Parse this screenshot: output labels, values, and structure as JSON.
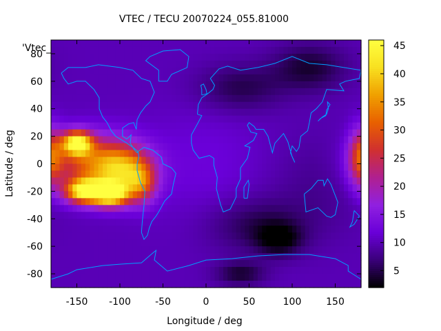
{
  "chart_data": {
    "type": "heatmap",
    "title": "VTEC / TECU 20070224_055.81000",
    "xlabel": "Longitude / deg",
    "ylabel": "Latitude / deg",
    "series_key": "'Vtec_",
    "xlim": [
      -180,
      180
    ],
    "ylim": [
      -90,
      90
    ],
    "x_ticks": [
      "-150",
      "-100",
      "-50",
      "0",
      "50",
      "100",
      "150"
    ],
    "x_tick_values": [
      -150,
      -100,
      -50,
      0,
      50,
      100,
      150
    ],
    "y_ticks": [
      "-80",
      "-60",
      "-40",
      "-20",
      "0",
      "20",
      "40",
      "60",
      "80"
    ],
    "y_tick_values": [
      -80,
      -60,
      -40,
      -20,
      0,
      20,
      40,
      60,
      80
    ],
    "colorbar": {
      "min": 2,
      "max": 46,
      "ticks": [
        "5",
        "10",
        "15",
        "20",
        "25",
        "30",
        "35",
        "40",
        "45"
      ],
      "tick_values": [
        5,
        10,
        15,
        20,
        25,
        30,
        35,
        40,
        45
      ],
      "colormap": [
        "#000000",
        "#3a007a",
        "#6a00d8",
        "#9020e0",
        "#b02090",
        "#d03030",
        "#e86000",
        "#f0a000",
        "#f8e020",
        "#ffff40"
      ]
    },
    "background_vtec": 10,
    "grid": false,
    "coastline_color": "#00a0ff",
    "features": [
      {
        "lon": -150,
        "lat": 15,
        "vtec": 42,
        "sigma_lon": 12,
        "sigma_lat": 6
      },
      {
        "lon": -140,
        "lat": -20,
        "vtec": 44,
        "sigma_lon": 16,
        "sigma_lat": 6
      },
      {
        "lon": -110,
        "lat": -22,
        "vtec": 43,
        "sigma_lon": 14,
        "sigma_lat": 6
      },
      {
        "lon": -130,
        "lat": 0,
        "vtec": 30,
        "sigma_lon": 35,
        "sigma_lat": 14
      },
      {
        "lon": -95,
        "lat": -5,
        "vtec": 28,
        "sigma_lon": 22,
        "sigma_lat": 12
      },
      {
        "lon": -75,
        "lat": -15,
        "vtec": 24,
        "sigma_lon": 12,
        "sigma_lat": 10
      },
      {
        "lon": 180,
        "lat": 5,
        "vtec": 27,
        "sigma_lon": 10,
        "sigma_lat": 14
      },
      {
        "lon": 60,
        "lat": -45,
        "vtec": 5,
        "sigma_lon": 40,
        "sigma_lat": 14
      },
      {
        "lon": 85,
        "lat": -55,
        "vtec": 3,
        "sigma_lon": 18,
        "sigma_lat": 8
      },
      {
        "lon": 40,
        "lat": -80,
        "vtec": 4,
        "sigma_lon": 20,
        "sigma_lat": 6
      },
      {
        "lon": 40,
        "lat": 55,
        "vtec": 5,
        "sigma_lon": 35,
        "sigma_lat": 12
      },
      {
        "lon": 120,
        "lat": 70,
        "vtec": 4,
        "sigma_lon": 30,
        "sigma_lat": 12
      },
      {
        "lon": 130,
        "lat": -15,
        "vtec": 8,
        "sigma_lon": 40,
        "sigma_lat": 25
      },
      {
        "lon": 0,
        "lat": 0,
        "vtec": 12,
        "sigma_lon": 50,
        "sigma_lat": 30
      }
    ],
    "coastlines": [
      {
        "name": "north-america",
        "points": [
          [
            -168,
            66
          ],
          [
            -160,
            70
          ],
          [
            -140,
            70
          ],
          [
            -125,
            72
          ],
          [
            -100,
            70
          ],
          [
            -85,
            68
          ],
          [
            -75,
            62
          ],
          [
            -65,
            60
          ],
          [
            -60,
            52
          ],
          [
            -65,
            45
          ],
          [
            -70,
            42
          ],
          [
            -76,
            37
          ],
          [
            -80,
            32
          ],
          [
            -81,
            25
          ],
          [
            -84,
            30
          ],
          [
            -90,
            29
          ],
          [
            -97,
            26
          ],
          [
            -97,
            20
          ],
          [
            -92,
            18
          ],
          [
            -87,
            21
          ],
          [
            -88,
            15
          ],
          [
            -83,
            10
          ],
          [
            -80,
            8
          ],
          [
            -79,
            9
          ],
          [
            -85,
            12
          ],
          [
            -92,
            15
          ],
          [
            -105,
            20
          ],
          [
            -110,
            24
          ],
          [
            -115,
            30
          ],
          [
            -120,
            34
          ],
          [
            -124,
            40
          ],
          [
            -124,
            48
          ],
          [
            -130,
            54
          ],
          [
            -140,
            60
          ],
          [
            -150,
            60
          ],
          [
            -160,
            58
          ],
          [
            -165,
            62
          ],
          [
            -168,
            66
          ]
        ]
      },
      {
        "name": "greenland",
        "points": [
          [
            -55,
            60
          ],
          [
            -45,
            60
          ],
          [
            -40,
            65
          ],
          [
            -22,
            70
          ],
          [
            -20,
            78
          ],
          [
            -30,
            83
          ],
          [
            -50,
            82
          ],
          [
            -65,
            78
          ],
          [
            -70,
            75
          ],
          [
            -55,
            68
          ],
          [
            -55,
            60
          ]
        ]
      },
      {
        "name": "south-america",
        "points": [
          [
            -79,
            9
          ],
          [
            -72,
            12
          ],
          [
            -62,
            10
          ],
          [
            -52,
            5
          ],
          [
            -50,
            0
          ],
          [
            -40,
            -3
          ],
          [
            -35,
            -7
          ],
          [
            -38,
            -15
          ],
          [
            -40,
            -22
          ],
          [
            -48,
            -27
          ],
          [
            -55,
            -35
          ],
          [
            -58,
            -38
          ],
          [
            -63,
            -42
          ],
          [
            -66,
            -47
          ],
          [
            -68,
            -52
          ],
          [
            -72,
            -55
          ],
          [
            -75,
            -50
          ],
          [
            -74,
            -42
          ],
          [
            -72,
            -30
          ],
          [
            -71,
            -20
          ],
          [
            -76,
            -14
          ],
          [
            -80,
            -5
          ],
          [
            -80,
            0
          ],
          [
            -78,
            5
          ],
          [
            -79,
            9
          ]
        ]
      },
      {
        "name": "eurasia-africa",
        "points": [
          [
            -10,
            36
          ],
          [
            -9,
            43
          ],
          [
            -5,
            48
          ],
          [
            2,
            51
          ],
          [
            8,
            54
          ],
          [
            10,
            57
          ],
          [
            5,
            62
          ],
          [
            15,
            69
          ],
          [
            25,
            71
          ],
          [
            40,
            68
          ],
          [
            60,
            70
          ],
          [
            80,
            73
          ],
          [
            100,
            78
          ],
          [
            120,
            73
          ],
          [
            140,
            72
          ],
          [
            160,
            70
          ],
          [
            180,
            68
          ],
          [
            178,
            62
          ],
          [
            162,
            60
          ],
          [
            155,
            58
          ],
          [
            160,
            53
          ],
          [
            140,
            54
          ],
          [
            135,
            45
          ],
          [
            128,
            40
          ],
          [
            122,
            37
          ],
          [
            120,
            30
          ],
          [
            118,
            24
          ],
          [
            110,
            20
          ],
          [
            108,
            12
          ],
          [
            105,
            9
          ],
          [
            100,
            13
          ],
          [
            98,
            8
          ],
          [
            103,
            1
          ],
          [
            100,
            5
          ],
          [
            95,
            16
          ],
          [
            90,
            22
          ],
          [
            80,
            15
          ],
          [
            77,
            8
          ],
          [
            72,
            20
          ],
          [
            67,
            25
          ],
          [
            58,
            25
          ],
          [
            56,
            27
          ],
          [
            50,
            30
          ],
          [
            48,
            28
          ],
          [
            52,
            23
          ],
          [
            59,
            22
          ],
          [
            55,
            17
          ],
          [
            45,
            13
          ],
          [
            51,
            12
          ],
          [
            48,
            4
          ],
          [
            40,
            -3
          ],
          [
            40,
            -11
          ],
          [
            35,
            -18
          ],
          [
            35,
            -24
          ],
          [
            32,
            -28
          ],
          [
            28,
            -33
          ],
          [
            20,
            -35
          ],
          [
            17,
            -30
          ],
          [
            12,
            -18
          ],
          [
            13,
            -10
          ],
          [
            9,
            -1
          ],
          [
            9,
            4
          ],
          [
            4,
            6
          ],
          [
            -8,
            4
          ],
          [
            -15,
            10
          ],
          [
            -17,
            15
          ],
          [
            -17,
            21
          ],
          [
            -10,
            29
          ],
          [
            -5,
            35
          ],
          [
            -10,
            36
          ]
        ]
      },
      {
        "name": "madagascar",
        "points": [
          [
            44,
            -25
          ],
          [
            48,
            -25
          ],
          [
            50,
            -15
          ],
          [
            49,
            -12
          ],
          [
            44,
            -17
          ],
          [
            44,
            -25
          ]
        ]
      },
      {
        "name": "australia",
        "points": [
          [
            114,
            -22
          ],
          [
            122,
            -18
          ],
          [
            130,
            -12
          ],
          [
            136,
            -12
          ],
          [
            137,
            -16
          ],
          [
            141,
            -11
          ],
          [
            145,
            -15
          ],
          [
            150,
            -23
          ],
          [
            153,
            -28
          ],
          [
            150,
            -37
          ],
          [
            145,
            -39
          ],
          [
            140,
            -38
          ],
          [
            135,
            -35
          ],
          [
            130,
            -32
          ],
          [
            116,
            -35
          ],
          [
            114,
            -22
          ]
        ]
      },
      {
        "name": "new-zealand",
        "points": [
          [
            172,
            -34
          ],
          [
            178,
            -38
          ],
          [
            175,
            -41
          ],
          [
            172,
            -44
          ],
          [
            167,
            -46
          ],
          [
            170,
            -42
          ],
          [
            172,
            -34
          ]
        ]
      },
      {
        "name": "japan",
        "points": [
          [
            130,
            31
          ],
          [
            135,
            34
          ],
          [
            140,
            36
          ],
          [
            142,
            40
          ],
          [
            141,
            45
          ],
          [
            144,
            43
          ],
          [
            140,
            39
          ],
          [
            139,
            35
          ],
          [
            133,
            33
          ],
          [
            130,
            31
          ]
        ]
      },
      {
        "name": "great-britain",
        "points": [
          [
            -5,
            50
          ],
          [
            1,
            51
          ],
          [
            0,
            54
          ],
          [
            -3,
            58
          ],
          [
            -6,
            57
          ],
          [
            -5,
            54
          ],
          [
            -5,
            50
          ]
        ]
      },
      {
        "name": "antarctica",
        "points": [
          [
            -180,
            -84
          ],
          [
            -160,
            -80
          ],
          [
            -150,
            -77
          ],
          [
            -120,
            -74
          ],
          [
            -100,
            -73
          ],
          [
            -75,
            -72
          ],
          [
            -62,
            -65
          ],
          [
            -58,
            -63
          ],
          [
            -60,
            -70
          ],
          [
            -45,
            -78
          ],
          [
            -20,
            -74
          ],
          [
            0,
            -70
          ],
          [
            30,
            -69
          ],
          [
            60,
            -67
          ],
          [
            90,
            -66
          ],
          [
            120,
            -66
          ],
          [
            150,
            -69
          ],
          [
            165,
            -74
          ],
          [
            165,
            -78
          ],
          [
            180,
            -84
          ]
        ]
      }
    ]
  }
}
